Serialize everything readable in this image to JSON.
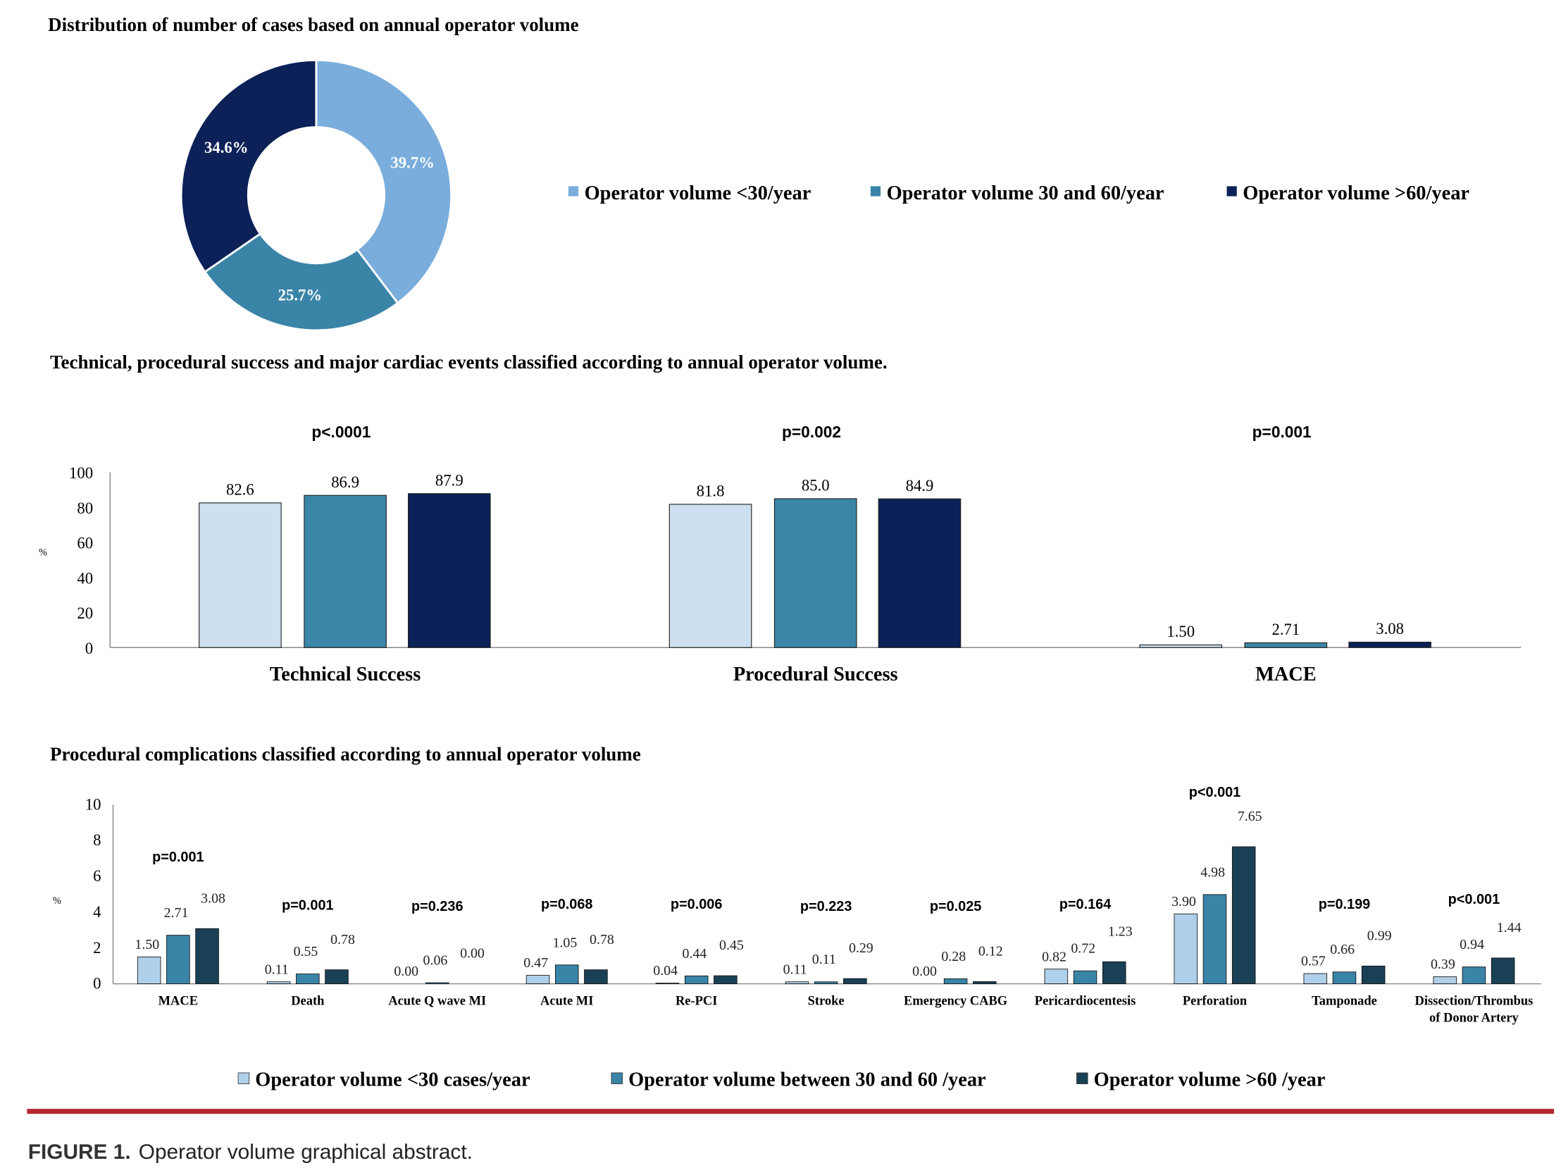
{
  "chart_data": [
    {
      "type": "pie",
      "donut": true,
      "title": "Distribution of number of cases based on annual operator volume",
      "legend_position": "right",
      "slices": [
        {
          "label": "Operator volume <30/year",
          "value": 39.7,
          "display": "39.7%",
          "color": "#7aaddc"
        },
        {
          "label": "Operator volume 30 and 60/year",
          "value": 25.7,
          "display": "25.7%",
          "color": "#3a84a8"
        },
        {
          "label": "Operator volume >60/year",
          "value": 34.6,
          "display": "34.6%",
          "color": "#0b2157"
        }
      ]
    },
    {
      "type": "bar",
      "title": "Technical, procedural success and major cardiac events classified according to annual operator volume.",
      "ylabel": "%",
      "ylim": [
        0,
        100
      ],
      "yticks": [
        "0",
        "20",
        "40",
        "60",
        "80",
        "100"
      ],
      "grid": false,
      "categories": [
        "Technical Success",
        "Procedural Success",
        "MACE"
      ],
      "p_values": [
        "p<.0001",
        "p=0.002",
        "p=0.001"
      ],
      "series": [
        {
          "values": [
            82.6,
            81.8,
            1.5
          ],
          "labels": [
            "82.6",
            "81.8",
            "1.50"
          ],
          "color": "#cce0ef"
        },
        {
          "values": [
            86.9,
            85.0,
            2.71
          ],
          "labels": [
            "86.9",
            "85.0",
            "2.71"
          ],
          "color": "#3a86a8"
        },
        {
          "values": [
            87.9,
            84.9,
            3.08
          ],
          "labels": [
            "87.9",
            "84.9",
            "3.08"
          ],
          "color": "#0b2157"
        }
      ]
    },
    {
      "type": "bar",
      "title": "Procedural complications classified according to annual operator volume",
      "ylabel": "%",
      "ylim": [
        0,
        10
      ],
      "yticks": [
        "0",
        "2",
        "4",
        "6",
        "8",
        "10"
      ],
      "grid": false,
      "legend_position": "bottom",
      "categories": [
        "MACE",
        "Death",
        "Acute Q wave MI",
        "Acute MI",
        "Re-PCI",
        "Stroke",
        "Emergency CABG",
        "Pericardiocentesis",
        "Perforation",
        "Tamponade",
        "Dissection/Thrombus of Donor Artery"
      ],
      "p_values": [
        "p=0.001",
        "p=0.001",
        "p=0.236",
        "p=0.068",
        "p=0.006",
        "p=0.223",
        "p=0.025",
        "p=0.164",
        "p<0.001",
        "p=0.199",
        "p<0.001"
      ],
      "series": [
        {
          "name": "Operator volume <30 cases/year",
          "color": "#b0cfe9",
          "values": [
            1.5,
            0.11,
            0.0,
            0.47,
            0.04,
            0.11,
            0.0,
            0.82,
            3.9,
            0.57,
            0.39
          ],
          "labels": [
            "1.50",
            "0.11",
            "0.00",
            "0.47",
            "0.04",
            "0.11",
            "0.00",
            "0.82",
            "3.90",
            "0.57",
            "0.39"
          ]
        },
        {
          "name": "Operator volume between 30 and 60 /year",
          "color": "#3a84a8",
          "values": [
            2.71,
            0.55,
            0.06,
            1.05,
            0.44,
            0.11,
            0.28,
            0.72,
            4.98,
            0.66,
            0.94
          ],
          "labels": [
            "2.71",
            "0.55",
            "0.06",
            "1.05",
            "0.44",
            "0.11",
            "0.28",
            "0.72",
            "4.98",
            "0.66",
            "0.94"
          ]
        },
        {
          "name": "Operator volume >60 /year",
          "color": "#1a4056",
          "values": [
            3.08,
            0.78,
            0.0,
            0.78,
            0.45,
            0.29,
            0.12,
            1.23,
            7.65,
            0.99,
            1.44
          ],
          "labels": [
            "3.08",
            "0.78",
            "0.00",
            "0.78",
            "0.45",
            "0.29",
            "0.12",
            "1.23",
            "7.65",
            "0.99",
            "1.44"
          ]
        }
      ]
    }
  ],
  "caption": {
    "label": "FIGURE 1.",
    "text": " Operator volume graphical abstract."
  },
  "colors": {
    "rule": "#b5272f"
  }
}
